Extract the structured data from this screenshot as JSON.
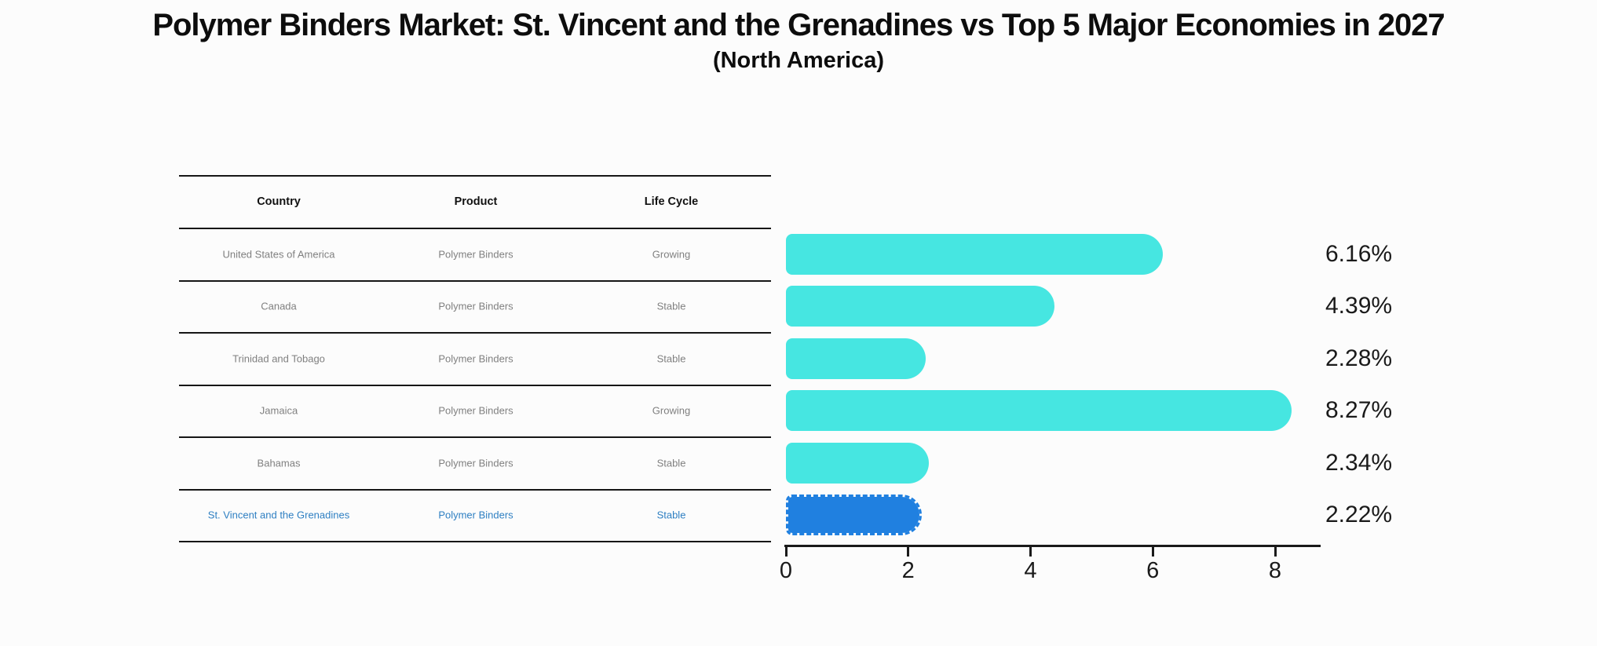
{
  "header": {
    "title": "Polymer Binders Market: St. Vincent and the Grenadines vs Top 5 Major Economies in 2027",
    "subtitle": "(North America)"
  },
  "table": {
    "columns": [
      "Country",
      "Product",
      "Life Cycle"
    ],
    "rows": [
      {
        "country": "United States of America",
        "product": "Polymer Binders",
        "life_cycle": "Growing",
        "highlight": false
      },
      {
        "country": "Canada",
        "product": "Polymer Binders",
        "life_cycle": "Stable",
        "highlight": false
      },
      {
        "country": "Trinidad and Tobago",
        "product": "Polymer Binders",
        "life_cycle": "Stable",
        "highlight": false
      },
      {
        "country": "Jamaica",
        "product": "Polymer Binders",
        "life_cycle": "Growing",
        "highlight": false
      },
      {
        "country": "Bahamas",
        "product": "Polymer Binders",
        "life_cycle": "Stable",
        "highlight": false
      },
      {
        "country": "St. Vincent and the Grenadines",
        "product": "Polymer Binders",
        "life_cycle": "Stable",
        "highlight": true
      }
    ]
  },
  "chart_data": {
    "type": "bar",
    "orientation": "horizontal",
    "title": "Polymer Binders Market: St. Vincent and the Grenadines vs Top 5 Major Economies in 2027",
    "subtitle": "(North America)",
    "categories": [
      "United States of America",
      "Canada",
      "Trinidad and Tobago",
      "Jamaica",
      "Bahamas",
      "St. Vincent and the Grenadines"
    ],
    "values": [
      6.16,
      4.39,
      2.28,
      8.27,
      2.34,
      2.22
    ],
    "value_labels": [
      "6.16%",
      "4.39%",
      "2.28%",
      "8.27%",
      "2.34%",
      "2.22%"
    ],
    "x_ticks": [
      0,
      2,
      4,
      6,
      8
    ],
    "xlim": [
      0,
      8.75
    ],
    "highlight_index": 5,
    "grid": false,
    "legend_position": "none"
  },
  "colors": {
    "bar_default": "#46e6e1",
    "bar_highlight": "#2080e0",
    "highlight_text": "#2e7fc2",
    "row_text": "#808080",
    "heading_text": "#111111",
    "axis": "#1a1a1a",
    "background": "#fcfcfc"
  }
}
